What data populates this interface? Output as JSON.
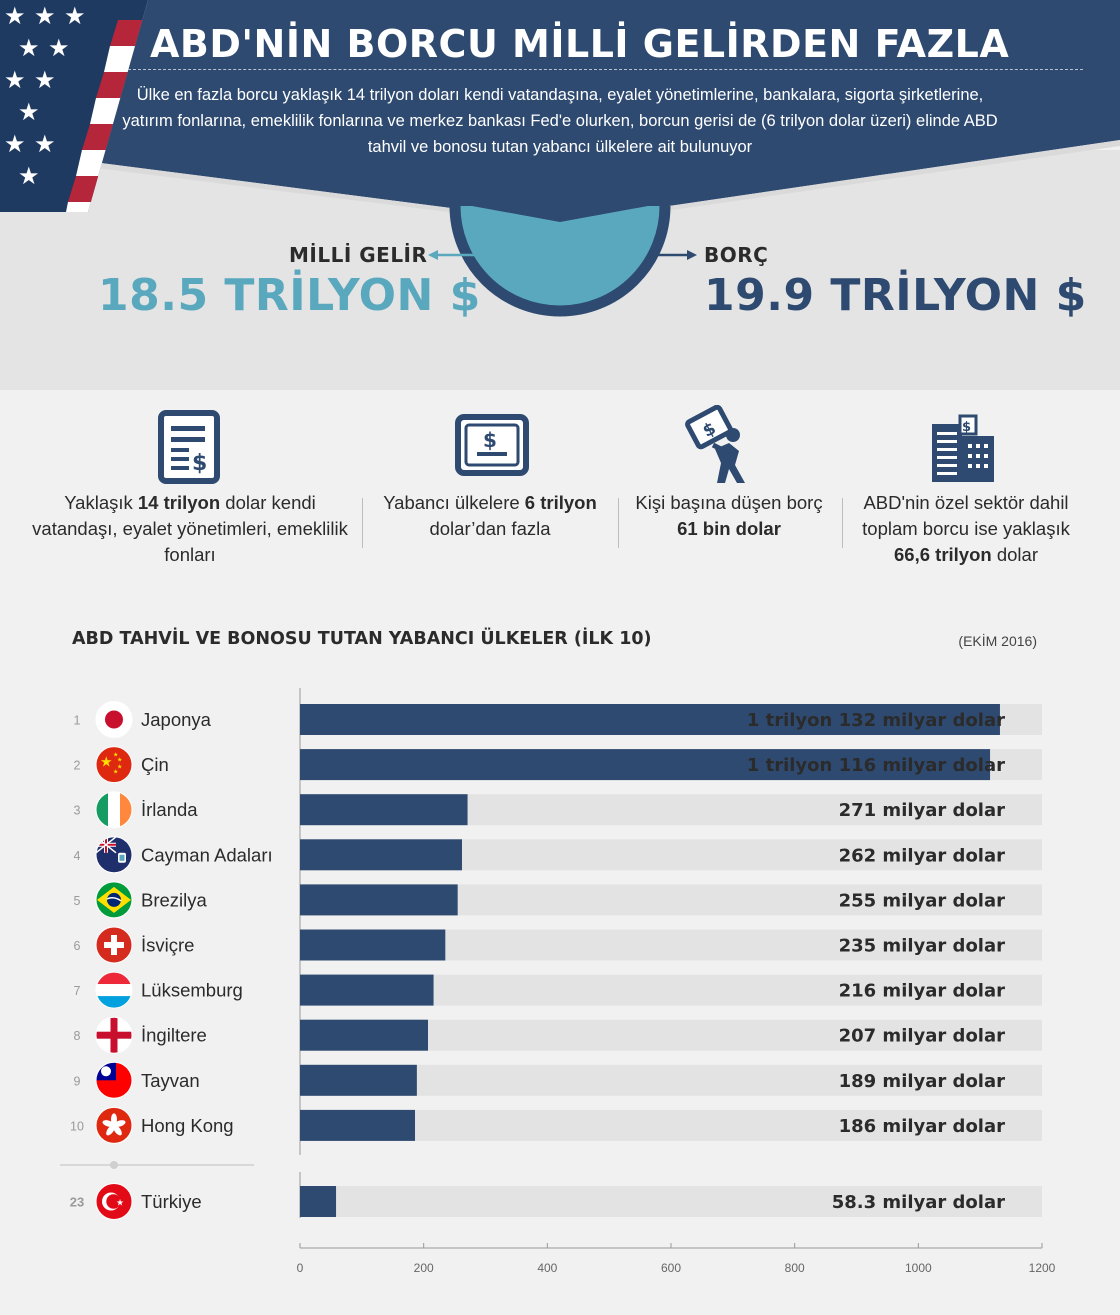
{
  "header": {
    "title": "ABD'NİN BORCU MİLLİ GELİRDEN FAZLA",
    "subtitle": "Ülke en fazla borcu yaklaşık 14 trilyon doları kendi vatandaşına, eyalet yönetimlerine, bankalara, sigorta şirketlerine, yatırım fonlarına, emeklilik fonlarına ve merkez bankası Fed'e olurken, borcun gerisi de (6 trilyon dolar üzeri) elinde ABD tahvil ve bonosu tutan yabancı ülkelere ait bulunuyor"
  },
  "comparison": {
    "income_label": "MİLLİ GELİR",
    "income_value": "18.5 TRİLYON $",
    "debt_label": "BORÇ",
    "debt_value": "19.9 TRİLYON $"
  },
  "stats": [
    {
      "icon": "document-dollar-icon",
      "pre": "Yaklaşık ",
      "bold": "14 trilyon",
      "post": " dolar kendi vatandaşı, eyalet yönetimleri, emeklilik fonları"
    },
    {
      "icon": "banknote-icon",
      "pre": "Yabancı ülkelere ",
      "bold": "6 trilyon",
      "post": " dolar’dan fazla"
    },
    {
      "icon": "person-carrying-burden-icon",
      "pre": "Kişi başına düşen borç ",
      "bold": "61 bin dolar",
      "post": ""
    },
    {
      "icon": "buildings-icon",
      "pre": "ABD'nin özel sektör dahil toplam borcu ise yaklaşık ",
      "bold": "66,6 trilyon",
      "post": " dolar"
    }
  ],
  "colors": {
    "navy": "#2e4a70",
    "teal": "#5aa8be",
    "track": "#e3e3e3",
    "flag_red": "#b5263a"
  },
  "chart_data": {
    "type": "bar",
    "orientation": "horizontal",
    "title": "ABD TAHVİL VE BONOSU TUTAN YABANCI ÜLKELER (İLK 10)",
    "date_note": "(EKİM 2016)",
    "x_ticks": [
      0,
      200,
      400,
      600,
      800,
      1000,
      1200
    ],
    "xlim": [
      0,
      1200
    ],
    "rows": [
      {
        "rank": "1",
        "country": "Japonya",
        "flag": "japan-flag-icon",
        "value": 1132,
        "label": "1 trilyon 132 milyar dolar"
      },
      {
        "rank": "2",
        "country": "Çin",
        "flag": "china-flag-icon",
        "value": 1116,
        "label": "1 trilyon 116 milyar dolar"
      },
      {
        "rank": "3",
        "country": "İrlanda",
        "flag": "ireland-flag-icon",
        "value": 271,
        "label": "271 milyar dolar"
      },
      {
        "rank": "4",
        "country": "Cayman Adaları",
        "flag": "cayman-islands-flag-icon",
        "value": 262,
        "label": "262 milyar dolar"
      },
      {
        "rank": "5",
        "country": "Brezilya",
        "flag": "brazil-flag-icon",
        "value": 255,
        "label": "255 milyar dolar"
      },
      {
        "rank": "6",
        "country": "İsviçre",
        "flag": "switzerland-flag-icon",
        "value": 235,
        "label": "235 milyar dolar"
      },
      {
        "rank": "7",
        "country": "Lüksemburg",
        "flag": "luxembourg-flag-icon",
        "value": 216,
        "label": "216 milyar dolar"
      },
      {
        "rank": "8",
        "country": "İngiltere",
        "flag": "england-flag-icon",
        "value": 207,
        "label": "207 milyar dolar"
      },
      {
        "rank": "9",
        "country": "Tayvan",
        "flag": "taiwan-flag-icon",
        "value": 189,
        "label": "189 milyar dolar"
      },
      {
        "rank": "10",
        "country": "Hong Kong",
        "flag": "hong-kong-flag-icon",
        "value": 186,
        "label": "186 milyar dolar"
      },
      {
        "rank": "23",
        "country": "Türkiye",
        "flag": "turkey-flag-icon",
        "value": 58.3,
        "label": "58.3 milyar dolar"
      }
    ]
  }
}
